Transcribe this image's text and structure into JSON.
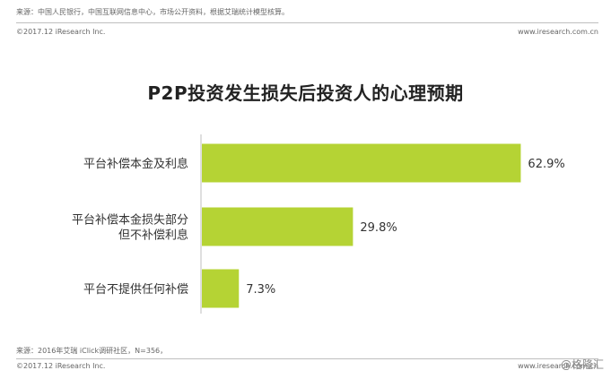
{
  "header": {
    "source_note": "来源：中国人民银行，中国互联网信息中心，市场公开资料，根据艾瑞统计模型核算。",
    "copyright": "©2017.12 iResearch Inc.",
    "website": "www.iresearch.com.cn"
  },
  "footer": {
    "source_note": "来源：2016年艾瑞 iClick调研社区，N=356，",
    "copyright": "©2017.12 iResearch Inc.",
    "website": "www.iresearch.com.cn",
    "watermark": "@格隆汇"
  },
  "chart_data": {
    "type": "bar",
    "orientation": "horizontal",
    "title": "P2P投资发生损失后投资人的心理预期",
    "categories": [
      [
        "平台补偿本金及利息"
      ],
      [
        "平台补偿本金损失部分",
        "但不补偿利息"
      ],
      [
        "平台不提供任何补偿"
      ]
    ],
    "values": [
      62.9,
      29.8,
      7.3
    ],
    "labels": [
      "62.9%",
      "29.8%",
      "7.3%"
    ],
    "unit": "%",
    "xlim": [
      0,
      70
    ],
    "bar_color": "#b5d334",
    "grid": false,
    "legend": "none"
  }
}
